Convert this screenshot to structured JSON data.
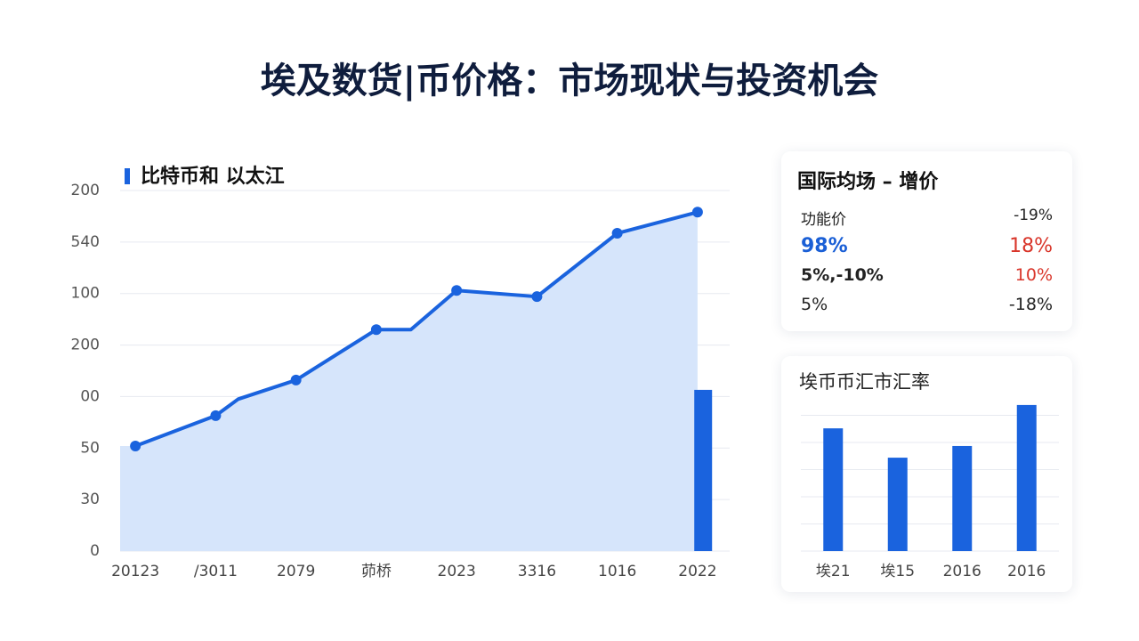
{
  "title": "埃及数货|币价格：市场现状与投资机会",
  "chart_data": [
    {
      "type": "line",
      "legend": "比特币和 以太江",
      "color": "#1a63de",
      "area_color": "#d6e5fb",
      "x": [
        0,
        1,
        1.28,
        2,
        3,
        3.43,
        4,
        5,
        6,
        7
      ],
      "values": [
        2.04,
        2.63,
        2.95,
        3.32,
        4.3,
        4.3,
        5.06,
        4.94,
        6.17,
        6.58
      ],
      "markers": [
        true,
        true,
        false,
        true,
        true,
        false,
        true,
        true,
        true,
        true
      ],
      "bar": {
        "x": 7.07,
        "value": 3.13,
        "color": "#1a63de"
      },
      "xlim": [
        -0.19,
        7.4
      ],
      "xticks": [
        {
          "value": 0,
          "label": "20123"
        },
        {
          "value": 1,
          "label": "/3011"
        },
        {
          "value": 2,
          "label": "2079"
        },
        {
          "value": 3,
          "label": "茆桥"
        },
        {
          "value": 4,
          "label": "2023"
        },
        {
          "value": 5,
          "label": "3316"
        },
        {
          "value": 6,
          "label": "1016"
        },
        {
          "value": 7,
          "label": "2022"
        }
      ],
      "ylim": [
        0,
        7
      ],
      "yticks": [
        {
          "value": 0,
          "label": "0"
        },
        {
          "value": 1,
          "label": "30"
        },
        {
          "value": 2,
          "label": "50"
        },
        {
          "value": 3,
          "label": "00"
        },
        {
          "value": 4,
          "label": "200"
        },
        {
          "value": 5,
          "label": "100"
        },
        {
          "value": 6,
          "label": "540"
        },
        {
          "value": 7,
          "label": "200"
        }
      ],
      "grid": true
    },
    {
      "type": "bar",
      "title": "埃币币汇市汇率",
      "color": "#1a63de",
      "categories": [
        "埃21",
        "埃15",
        "2016",
        "2016"
      ],
      "values": [
        4.52,
        3.44,
        3.87,
        5.38
      ],
      "ylim": [
        0,
        6
      ],
      "grid": true
    }
  ],
  "card": {
    "title": "国际均场 – 增价",
    "rows": [
      [
        "功能价",
        "-19%"
      ],
      [
        "98%",
        "18%"
      ],
      [
        "5%,-10%",
        "10%"
      ],
      [
        "5%",
        "-18%"
      ]
    ]
  }
}
